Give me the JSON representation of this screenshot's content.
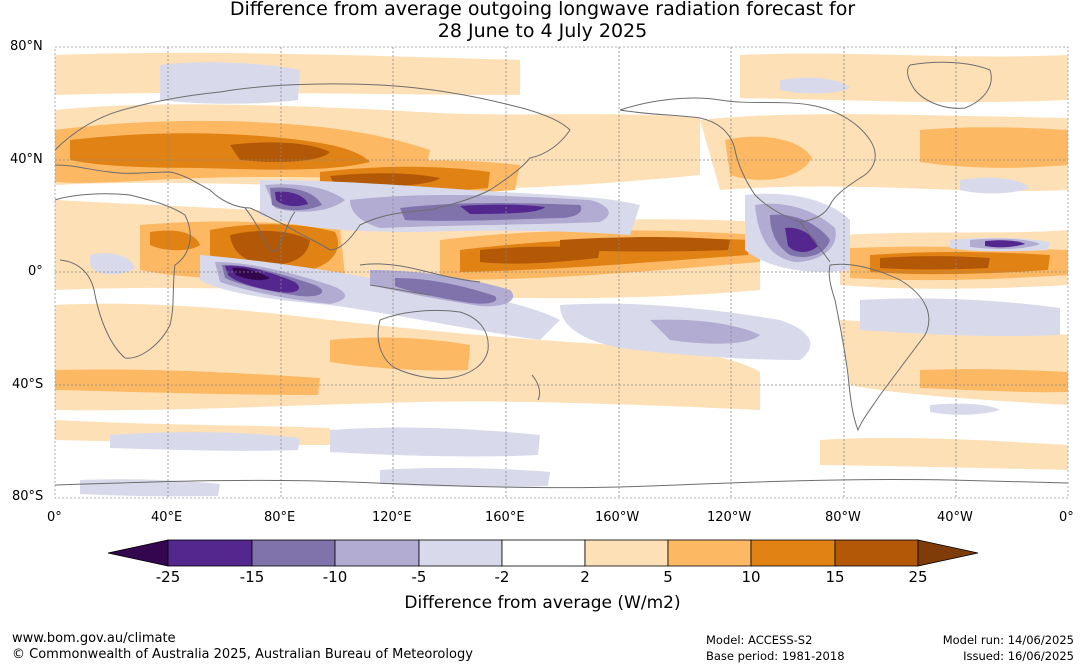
{
  "title": {
    "line1": "Difference from average outgoing longwave radiation forecast for",
    "line2": "28 June to 4 July 2025"
  },
  "map": {
    "projection": "equirectangular",
    "lat_labels": [
      "80°N",
      "40°N",
      "0°",
      "40°S",
      "80°S"
    ],
    "lon_labels": [
      "0°",
      "40°E",
      "80°E",
      "120°E",
      "160°E",
      "160°W",
      "120°W",
      "80°W",
      "40°W",
      "0°"
    ]
  },
  "colorbar": {
    "title": "Difference from average (W/m2)",
    "tick_labels": [
      "-25",
      "-15",
      "-10",
      "-5",
      "-2",
      "2",
      "5",
      "10",
      "15",
      "25"
    ],
    "colors": [
      "#34064f",
      "#54278f",
      "#8073ac",
      "#b2abd2",
      "#d8daeb",
      "#ffffff",
      "#fee0b6",
      "#fdb863",
      "#e08214",
      "#b35806",
      "#7f3b08"
    ],
    "colors_note_excluded": true
  },
  "footer": {
    "url": "www.bom.gov.au/climate",
    "copyright": "© Commonwealth of Australia 2025, Australian Bureau of Meteorology",
    "model": "Model: ACCESS-S2",
    "base_period": "Base period: 1981-2018",
    "model_run": "Model run: 14/06/2025",
    "issued": "Issued: 16/06/2025"
  }
}
